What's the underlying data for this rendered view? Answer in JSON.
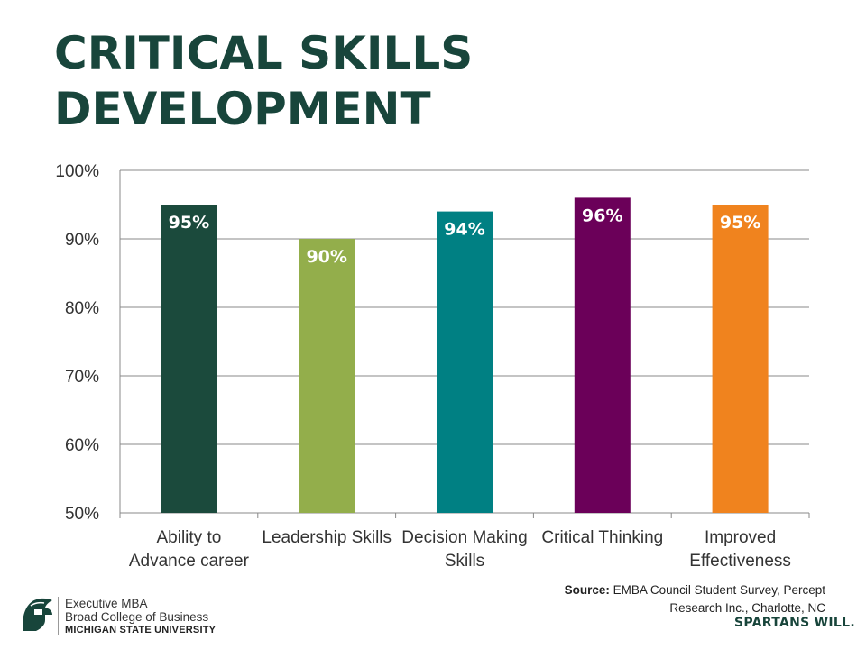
{
  "title_lines": [
    "CRITICAL SKILLS",
    "DEVELOPMENT"
  ],
  "chart_data": {
    "type": "bar",
    "categories": [
      [
        "Ability to",
        "Advance career"
      ],
      [
        "Leadership Skills"
      ],
      [
        "Decision Making",
        "Skills"
      ],
      [
        "Critical Thinking"
      ],
      [
        "Improved",
        "Effectiveness"
      ]
    ],
    "values": [
      95,
      90,
      94,
      96,
      95
    ],
    "data_labels": [
      "95%",
      "90%",
      "94%",
      "96%",
      "95%"
    ],
    "colors": [
      "#1b4a3c",
      "#93ae4b",
      "#008083",
      "#6b0059",
      "#f0831e"
    ],
    "ylim": [
      50,
      100
    ],
    "yticks": [
      50,
      60,
      70,
      80,
      90,
      100
    ],
    "ytick_labels": [
      "50%",
      "60%",
      "70%",
      "80%",
      "90%",
      "100%"
    ],
    "grid": true
  },
  "source": {
    "label": "Source:",
    "text_line1": " EMBA Council Student Survey, Percept",
    "text_line2": "Research Inc., Charlotte, NC"
  },
  "footer": {
    "line1": "Executive MBA",
    "line2": "Broad College of Business",
    "line3": "MICHIGAN STATE UNIVERSITY",
    "tagline": "SPARTANS WILL."
  }
}
